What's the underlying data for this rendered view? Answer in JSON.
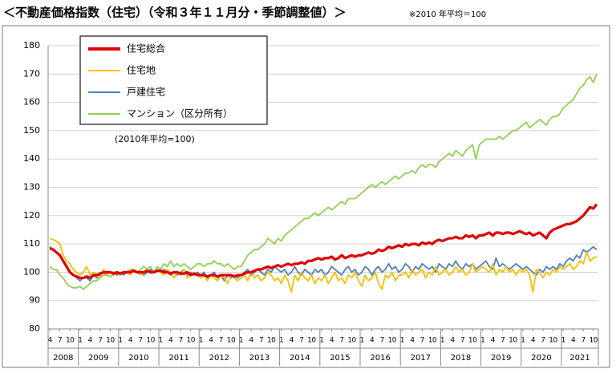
{
  "chart_data": {
    "type": "line",
    "title": "＜不動産価格指数（住宅）（令和３年１１月分・季節調整値）＞",
    "subtitle": "※2010 年平均＝100",
    "annotation": "(2010年平均=100)",
    "ylim": [
      80,
      180
    ],
    "yticks": [
      80,
      90,
      100,
      110,
      120,
      130,
      140,
      150,
      160,
      170,
      180
    ],
    "grid": true,
    "legend": "top-left",
    "x": [
      "2008-04",
      "2008-05",
      "2008-06",
      "2008-07",
      "2008-08",
      "2008-09",
      "2008-10",
      "2008-11",
      "2008-12",
      "2009-01",
      "2009-02",
      "2009-03",
      "2009-04",
      "2009-05",
      "2009-06",
      "2009-07",
      "2009-08",
      "2009-09",
      "2009-10",
      "2009-11",
      "2009-12",
      "2010-01",
      "2010-02",
      "2010-03",
      "2010-04",
      "2010-05",
      "2010-06",
      "2010-07",
      "2010-08",
      "2010-09",
      "2010-10",
      "2010-11",
      "2010-12",
      "2011-01",
      "2011-02",
      "2011-03",
      "2011-04",
      "2011-05",
      "2011-06",
      "2011-07",
      "2011-08",
      "2011-09",
      "2011-10",
      "2011-11",
      "2011-12",
      "2012-01",
      "2012-02",
      "2012-03",
      "2012-04",
      "2012-05",
      "2012-06",
      "2012-07",
      "2012-08",
      "2012-09",
      "2012-10",
      "2012-11",
      "2012-12",
      "2013-01",
      "2013-02",
      "2013-03",
      "2013-04",
      "2013-05",
      "2013-06",
      "2013-07",
      "2013-08",
      "2013-09",
      "2013-10",
      "2013-11",
      "2013-12",
      "2014-01",
      "2014-02",
      "2014-03",
      "2014-04",
      "2014-05",
      "2014-06",
      "2014-07",
      "2014-08",
      "2014-09",
      "2014-10",
      "2014-11",
      "2014-12",
      "2015-01",
      "2015-02",
      "2015-03",
      "2015-04",
      "2015-05",
      "2015-06",
      "2015-07",
      "2015-08",
      "2015-09",
      "2015-10",
      "2015-11",
      "2015-12",
      "2016-01",
      "2016-02",
      "2016-03",
      "2016-04",
      "2016-05",
      "2016-06",
      "2016-07",
      "2016-08",
      "2016-09",
      "2016-10",
      "2016-11",
      "2016-12",
      "2017-01",
      "2017-02",
      "2017-03",
      "2017-04",
      "2017-05",
      "2017-06",
      "2017-07",
      "2017-08",
      "2017-09",
      "2017-10",
      "2017-11",
      "2017-12",
      "2018-01",
      "2018-02",
      "2018-03",
      "2018-04",
      "2018-05",
      "2018-06",
      "2018-07",
      "2018-08",
      "2018-09",
      "2018-10",
      "2018-11",
      "2018-12",
      "2019-01",
      "2019-02",
      "2019-03",
      "2019-04",
      "2019-05",
      "2019-06",
      "2019-07",
      "2019-08",
      "2019-09",
      "2019-10",
      "2019-11",
      "2019-12",
      "2020-01",
      "2020-02",
      "2020-03",
      "2020-04",
      "2020-05",
      "2020-06",
      "2020-07",
      "2020-08",
      "2020-09",
      "2020-10",
      "2020-11",
      "2020-12",
      "2021-01",
      "2021-02",
      "2021-03",
      "2021-04",
      "2021-05",
      "2021-06",
      "2021-07",
      "2021-08",
      "2021-09",
      "2021-10",
      "2021-11"
    ],
    "xticks": [
      {
        "value": "2008-04",
        "label": "4"
      },
      {
        "value": "2008-07",
        "label": "7"
      },
      {
        "value": "2008-10",
        "label": "10"
      },
      {
        "value": "2009-01",
        "label": "1"
      },
      {
        "value": "2009-04",
        "label": "4"
      },
      {
        "value": "2009-07",
        "label": "7"
      },
      {
        "value": "2009-10",
        "label": "10"
      },
      {
        "value": "2010-01",
        "label": "1"
      },
      {
        "value": "2010-04",
        "label": "4"
      },
      {
        "value": "2010-07",
        "label": "7"
      },
      {
        "value": "2010-10",
        "label": "10"
      },
      {
        "value": "2011-01",
        "label": "1"
      },
      {
        "value": "2011-04",
        "label": "4"
      },
      {
        "value": "2011-07",
        "label": "7"
      },
      {
        "value": "2011-10",
        "label": "10"
      },
      {
        "value": "2012-01",
        "label": "1"
      },
      {
        "value": "2012-04",
        "label": "4"
      },
      {
        "value": "2012-07",
        "label": "7"
      },
      {
        "value": "2012-10",
        "label": "10"
      },
      {
        "value": "2013-01",
        "label": "1"
      },
      {
        "value": "2013-04",
        "label": "4"
      },
      {
        "value": "2013-07",
        "label": "7"
      },
      {
        "value": "2013-10",
        "label": "10"
      },
      {
        "value": "2014-01",
        "label": "1"
      },
      {
        "value": "2014-04",
        "label": "4"
      },
      {
        "value": "2014-07",
        "label": "7"
      },
      {
        "value": "2014-10",
        "label": "10"
      },
      {
        "value": "2015-01",
        "label": "1"
      },
      {
        "value": "2015-04",
        "label": "4"
      },
      {
        "value": "2015-07",
        "label": "7"
      },
      {
        "value": "2015-10",
        "label": "10"
      },
      {
        "value": "2016-01",
        "label": "1"
      },
      {
        "value": "2016-04",
        "label": "4"
      },
      {
        "value": "2016-07",
        "label": "7"
      },
      {
        "value": "2016-10",
        "label": "10"
      },
      {
        "value": "2017-01",
        "label": "1"
      },
      {
        "value": "2017-04",
        "label": "4"
      },
      {
        "value": "2017-07",
        "label": "7"
      },
      {
        "value": "2017-10",
        "label": "10"
      },
      {
        "value": "2018-01",
        "label": "1"
      },
      {
        "value": "2018-04",
        "label": "4"
      },
      {
        "value": "2018-07",
        "label": "7"
      },
      {
        "value": "2018-10",
        "label": "10"
      },
      {
        "value": "2019-01",
        "label": "1"
      },
      {
        "value": "2019-04",
        "label": "4"
      },
      {
        "value": "2019-07",
        "label": "7"
      },
      {
        "value": "2019-10",
        "label": "10"
      },
      {
        "value": "2020-01",
        "label": "1"
      },
      {
        "value": "2020-04",
        "label": "4"
      },
      {
        "value": "2020-07",
        "label": "7"
      },
      {
        "value": "2020-10",
        "label": "10"
      },
      {
        "value": "2021-01",
        "label": "1"
      },
      {
        "value": "2021-04",
        "label": "4"
      },
      {
        "value": "2021-07",
        "label": "7"
      },
      {
        "value": "2021-10",
        "label": "10"
      }
    ],
    "years": [
      "2008",
      "2009",
      "2010",
      "2011",
      "2012",
      "2013",
      "2014",
      "2015",
      "2016",
      "2017",
      "2018",
      "2019",
      "2020",
      "2021"
    ],
    "series": [
      {
        "name": "住宅総合",
        "color": "#e00000",
        "values": [
          108.5,
          108,
          107,
          106,
          104,
          102,
          100,
          99,
          98.5,
          98,
          98,
          98.5,
          98,
          99,
          99,
          99.5,
          100,
          100,
          100,
          99.5,
          100,
          99.5,
          100,
          100,
          100,
          100.5,
          100,
          100,
          100,
          100.5,
          100,
          100,
          100.5,
          100.5,
          100,
          100,
          99.5,
          100,
          100,
          99.5,
          99.5,
          100,
          99,
          99.5,
          99,
          99,
          99,
          98.5,
          99,
          99,
          98.5,
          99,
          99,
          99,
          99,
          98.5,
          99,
          99,
          99.5,
          100,
          100,
          100.5,
          101,
          101,
          101.5,
          102,
          101.5,
          102,
          102.5,
          102,
          102.5,
          103,
          102.5,
          103,
          103,
          103.5,
          103,
          104,
          104,
          104.5,
          105,
          104.5,
          105,
          105,
          105.5,
          104.5,
          105,
          106,
          105,
          105.5,
          106,
          105.5,
          106,
          106,
          106.5,
          107,
          106.5,
          107,
          108,
          107.5,
          108,
          109,
          108.5,
          109,
          109.5,
          109,
          110,
          109.5,
          110,
          110,
          109.5,
          110.5,
          110,
          110.5,
          110,
          111,
          111.5,
          111,
          111.5,
          112,
          112,
          112.5,
          112,
          112,
          113,
          112.5,
          113,
          112,
          113,
          113,
          113.5,
          114,
          113,
          114,
          114,
          113.5,
          114,
          114,
          113.5,
          114,
          114.5,
          114,
          113.5,
          114,
          113,
          113.5,
          114,
          113,
          112,
          114,
          115,
          115.5,
          116,
          116.5,
          117,
          117,
          117.5,
          118,
          119,
          120,
          121.5,
          123,
          122.5,
          124
        ]
      },
      {
        "name": "住宅地",
        "color": "#f5c000",
        "values": [
          112,
          111.5,
          111,
          110,
          106,
          104,
          103,
          101,
          100,
          99,
          100,
          102,
          99,
          100,
          99,
          98,
          101,
          99,
          100,
          99,
          100,
          99,
          100,
          100,
          99,
          101,
          100,
          99,
          100,
          101,
          100,
          100,
          101,
          100,
          99,
          101,
          100,
          98,
          100,
          99,
          101,
          98,
          99,
          100,
          99,
          98,
          99,
          97,
          99,
          98,
          97,
          99,
          98,
          96,
          99,
          98,
          97,
          98,
          99,
          97,
          100,
          98,
          99,
          97,
          98,
          100,
          99,
          97,
          98,
          96,
          99,
          97,
          93,
          99,
          97,
          100,
          98,
          97,
          99,
          96,
          98,
          97,
          99,
          96,
          98,
          100,
          97,
          98,
          96,
          99,
          98,
          100,
          97,
          95,
          99,
          97,
          98,
          100,
          96,
          94,
          99,
          98,
          100,
          97,
          99,
          99,
          100,
          98,
          101,
          99,
          100,
          101,
          98,
          100,
          99,
          102,
          99,
          100,
          101,
          99,
          100,
          102,
          100,
          101,
          99,
          100,
          103,
          100,
          101,
          102,
          101,
          100,
          103,
          99,
          101,
          100,
          102,
          100,
          101,
          99,
          101,
          100,
          101,
          99,
          93,
          101,
          100,
          98,
          100,
          99,
          101,
          100,
          102,
          101,
          102,
          103,
          101,
          102,
          104,
          103,
          107,
          104,
          105,
          105.5
        ]
      },
      {
        "name": "戸建住宅",
        "color": "#4f81bd",
        "values": [
          109,
          108,
          107,
          106,
          104,
          102,
          100,
          99,
          98,
          97,
          98,
          98,
          97,
          99,
          98,
          99,
          100,
          99,
          100,
          100,
          99,
          100,
          99,
          100,
          100,
          101,
          100,
          100,
          99,
          100,
          101,
          100,
          101,
          100,
          101,
          100,
          99,
          100,
          99,
          100,
          101,
          99,
          100,
          99,
          100,
          99,
          100,
          98,
          99,
          100,
          98,
          99,
          97,
          99,
          98,
          99,
          98,
          99,
          100,
          101,
          99,
          100,
          101,
          100,
          99,
          101,
          100,
          102,
          101,
          100,
          101,
          99,
          100,
          102,
          100,
          99,
          101,
          100,
          99,
          101,
          100,
          101,
          99,
          100,
          102,
          101,
          100,
          99,
          101,
          102,
          100,
          101,
          99,
          100,
          102,
          101,
          99,
          101,
          102,
          100,
          101,
          103,
          101,
          102,
          100,
          101,
          103,
          102,
          100,
          102,
          101,
          103,
          102,
          101,
          102,
          100,
          103,
          102,
          101,
          103,
          102,
          104,
          102,
          101,
          103,
          102,
          103,
          101,
          102,
          103,
          104,
          102,
          101,
          105,
          102,
          103,
          102,
          101,
          102,
          103,
          102,
          101,
          102,
          101,
          100,
          99,
          101,
          100,
          102,
          101,
          102,
          101,
          103,
          102,
          104,
          105,
          104,
          106,
          105,
          108,
          107,
          108,
          109,
          108
        ]
      },
      {
        "name": "マンション（区分所有）",
        "color": "#92d050",
        "values": [
          102,
          101,
          101,
          99,
          98,
          96,
          95,
          94.5,
          94.5,
          95,
          94,
          95,
          96,
          97,
          97,
          98,
          99,
          99,
          98.5,
          99,
          100,
          99,
          100,
          100,
          101,
          101,
          100,
          101,
          102,
          101,
          102,
          100,
          102,
          101,
          103,
          102,
          104,
          102,
          103,
          102,
          103,
          102,
          101,
          102,
          103,
          103,
          102,
          103,
          103,
          104,
          103,
          103,
          102,
          103,
          102,
          101,
          102,
          102,
          104,
          106,
          107,
          108,
          108,
          109,
          110,
          112,
          111,
          110,
          112,
          111,
          113,
          114,
          115,
          116,
          117,
          118,
          119,
          119,
          120,
          121,
          120,
          121,
          122,
          123,
          122,
          123,
          124,
          125,
          124,
          126,
          126,
          126,
          127,
          128,
          129,
          130,
          131,
          130,
          131,
          132,
          131,
          132,
          133,
          134,
          133,
          134,
          135,
          135,
          136,
          135,
          137,
          138,
          137,
          138,
          138,
          137,
          139,
          140,
          141,
          142,
          141,
          143,
          142,
          141,
          143,
          144,
          145,
          140,
          145,
          146,
          147,
          147,
          147,
          147,
          148,
          147,
          148,
          149,
          150,
          150,
          151,
          152,
          153,
          151,
          152,
          153,
          154,
          153,
          152,
          154,
          155,
          155,
          156,
          158,
          159,
          160,
          161,
          163,
          165,
          166,
          168,
          169,
          167,
          170
        ]
      }
    ]
  }
}
